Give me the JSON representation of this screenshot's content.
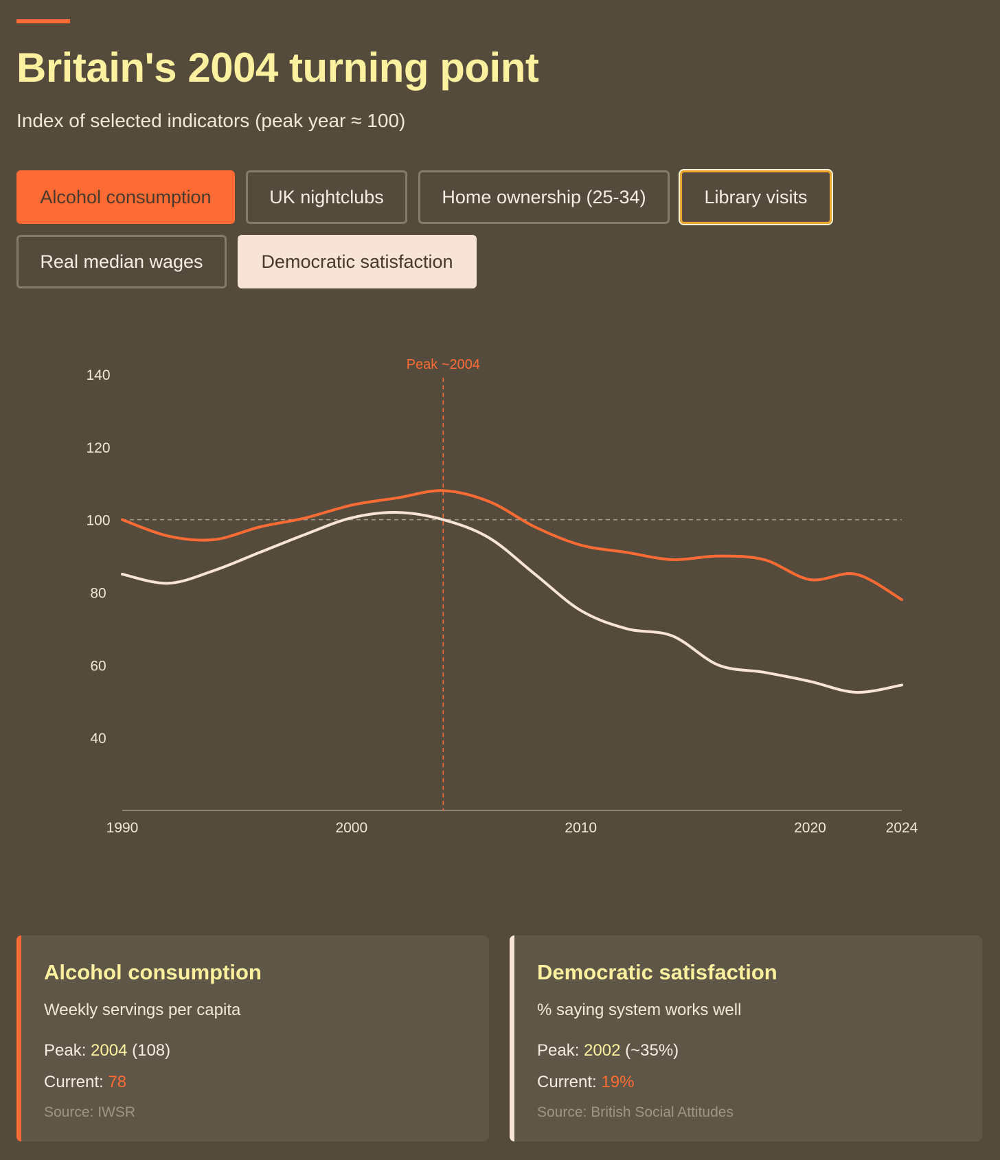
{
  "header": {
    "title": "Britain's 2004 turning point",
    "subtitle": "Index of selected indicators (peak year ≈ 100)"
  },
  "toggles": [
    {
      "label": "Alcohol consumption",
      "state": "active-orange"
    },
    {
      "label": "UK nightclubs",
      "state": "inactive"
    },
    {
      "label": "Home ownership (25-34)",
      "state": "inactive"
    },
    {
      "label": "Library visits",
      "state": "focused"
    },
    {
      "label": "Real median wages",
      "state": "inactive"
    },
    {
      "label": "Democratic satisfaction",
      "state": "active-cream"
    }
  ],
  "colors": {
    "background": "#544b3c",
    "accent": "#ff6b35",
    "cream": "#f7e4d6",
    "title": "#fdf1a0",
    "card": "#5e5646"
  },
  "chart_data": {
    "type": "line",
    "title": "Britain's 2004 turning point",
    "xlabel": "",
    "ylabel": "",
    "xlim": [
      1990,
      2024
    ],
    "ylim": [
      20,
      140
    ],
    "x_ticks": [
      1990,
      2000,
      2010,
      2020,
      2024
    ],
    "y_ticks": [
      40,
      60,
      80,
      100,
      120,
      140
    ],
    "reference_line": {
      "y": 100,
      "style": "dashed"
    },
    "annotation": {
      "x": 2004,
      "label": "Peak ~2004",
      "style": "dashed-vertical"
    },
    "series": [
      {
        "name": "Alcohol consumption",
        "color": "#ff6b35",
        "x": [
          1990,
          1992,
          1994,
          1996,
          1998,
          2000,
          2002,
          2004,
          2006,
          2008,
          2010,
          2012,
          2014,
          2016,
          2018,
          2020,
          2022,
          2024
        ],
        "values": [
          100,
          95.5,
          94.5,
          98,
          100.5,
          104,
          106,
          108,
          105,
          98,
          93,
          91,
          89,
          90,
          89,
          83.5,
          85,
          78
        ]
      },
      {
        "name": "Democratic satisfaction",
        "color": "#f7e4d6",
        "x": [
          1990,
          1992,
          1994,
          1996,
          1998,
          2000,
          2002,
          2004,
          2006,
          2008,
          2010,
          2012,
          2014,
          2016,
          2018,
          2020,
          2022,
          2024
        ],
        "values": [
          85,
          82.5,
          86,
          91,
          96,
          100.5,
          102,
          100,
          95,
          85,
          75,
          70,
          68,
          60,
          58,
          55.5,
          52.5,
          54.5
        ]
      }
    ]
  },
  "cards": [
    {
      "title": "Alcohol consumption",
      "description": "Weekly servings per capita",
      "peak_label": "Peak:",
      "peak_year": "2004",
      "peak_value": "(108)",
      "current_label": "Current:",
      "current_value": "78",
      "source": "Source: IWSR",
      "stripe_color": "#ff6b35"
    },
    {
      "title": "Democratic satisfaction",
      "description": "% saying system works well",
      "peak_label": "Peak:",
      "peak_year": "2002",
      "peak_value": "(~35%)",
      "current_label": "Current:",
      "current_value": "19%",
      "source": "Source: British Social Attitudes",
      "stripe_color": "#f7e4d6"
    }
  ]
}
